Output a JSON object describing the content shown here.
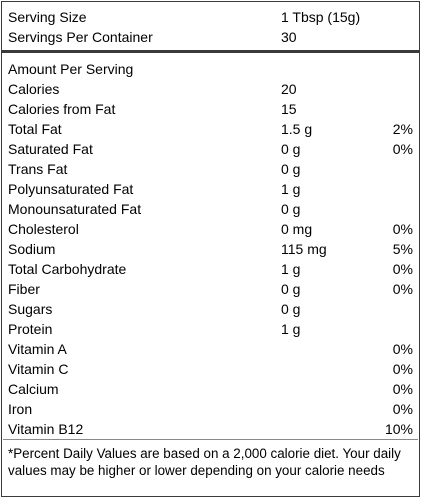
{
  "header": {
    "serving_size_label": "Serving Size",
    "serving_size_value": "1 Tbsp (15g)",
    "servings_label": "Servings Per Container",
    "servings_value": "30"
  },
  "amount_per_serving": "Amount Per Serving",
  "rows": [
    {
      "label": "Calories",
      "amount": "20",
      "dv": ""
    },
    {
      "label": "Calories from Fat",
      "amount": "15",
      "dv": ""
    },
    {
      "label": "Total Fat",
      "amount": "1.5 g",
      "dv": "2%"
    },
    {
      "label": "Saturated Fat",
      "amount": "0 g",
      "dv": "0%"
    },
    {
      "label": "Trans Fat",
      "amount": "0 g",
      "dv": ""
    },
    {
      "label": "Polyunsaturated Fat",
      "amount": "1 g",
      "dv": ""
    },
    {
      "label": "Monounsaturated Fat",
      "amount": "0 g",
      "dv": ""
    },
    {
      "label": "Cholesterol",
      "amount": "0 mg",
      "dv": "0%"
    },
    {
      "label": "Sodium",
      "amount": "115 mg",
      "dv": "5%"
    },
    {
      "label": "Total Carbohydrate",
      "amount": "1 g",
      "dv": "0%"
    },
    {
      "label": "Fiber",
      "amount": "0 g",
      "dv": "0%"
    },
    {
      "label": "Sugars",
      "amount": "0 g",
      "dv": ""
    },
    {
      "label": "Protein",
      "amount": "1 g",
      "dv": ""
    },
    {
      "label": "Vitamin A",
      "amount": "",
      "dv": "0%"
    },
    {
      "label": "Vitamin C",
      "amount": "",
      "dv": "0%"
    },
    {
      "label": "Calcium",
      "amount": "",
      "dv": "0%"
    },
    {
      "label": "Iron",
      "amount": "",
      "dv": "0%"
    },
    {
      "label": "Vitamin B12",
      "amount": "",
      "dv": "10%"
    }
  ],
  "footnote": "*Percent Daily Values are based on a 2,000 calorie diet. Your daily values may be higher or lower depending on your calorie needs",
  "colors": {
    "border": "#3a3a3a",
    "row_separator": "#8a8a8a",
    "text": "#000000",
    "background": "#ffffff"
  }
}
